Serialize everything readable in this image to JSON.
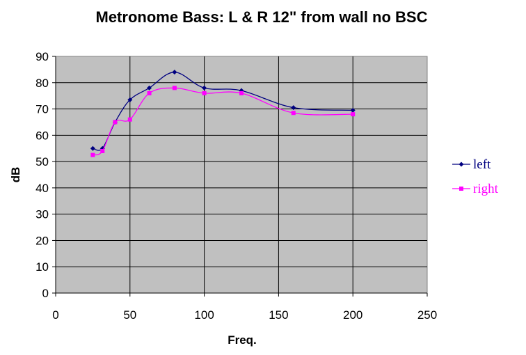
{
  "chart_data": {
    "type": "line",
    "title": "Metronome Bass: L & R 12\" from wall no BSC",
    "xlabel": "Freq.",
    "ylabel": "dB",
    "xlim": [
      0,
      250
    ],
    "ylim": [
      0,
      90
    ],
    "xticks": [
      "0",
      "50",
      "100",
      "150",
      "200",
      "250"
    ],
    "yticks": [
      "0",
      "10",
      "20",
      "30",
      "40",
      "50",
      "60",
      "70",
      "80",
      "90"
    ],
    "grid": true,
    "legend_position": "right",
    "plot_background": "#c0c0c0",
    "series": [
      {
        "name": "left",
        "color": "#000080",
        "marker": "diamond",
        "x": [
          25,
          31.5,
          40,
          50,
          63,
          80,
          100,
          125,
          160,
          200
        ],
        "y": [
          55,
          55,
          65,
          73.5,
          78,
          84,
          78,
          77,
          70.5,
          69.5
        ]
      },
      {
        "name": "right",
        "color": "#ff00ff",
        "marker": "square",
        "x": [
          25,
          31.5,
          40,
          50,
          63,
          80,
          100,
          125,
          160,
          200
        ],
        "y": [
          52.5,
          54,
          65,
          66,
          76,
          78,
          76,
          76,
          68.5,
          68
        ]
      }
    ]
  }
}
